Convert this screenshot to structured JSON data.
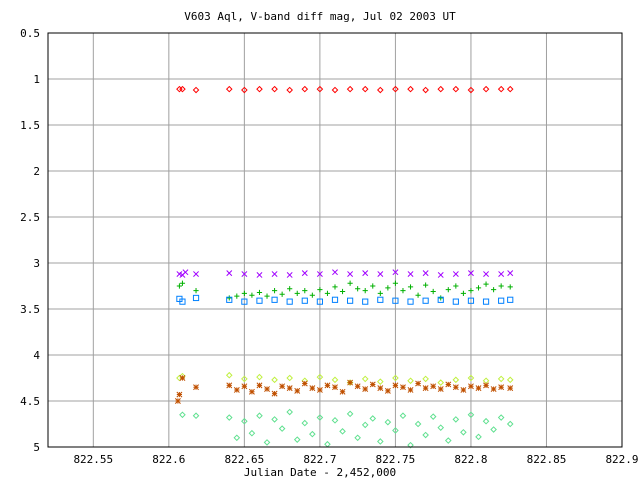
{
  "chart_data": {
    "type": "scatter",
    "title": "V603 Aql, V-band diff mag, Jul 02 2003 UT",
    "xlabel": "Julian Date - 2,452,000",
    "ylabel": "",
    "xlim": [
      822.52,
      822.9
    ],
    "ylim": [
      5,
      0.5
    ],
    "y_inverted": true,
    "grid": true,
    "legend": "none",
    "xticks": [
      "822.55",
      "822.6",
      "822.65",
      "822.7",
      "822.75",
      "822.8",
      "822.85",
      "822.9"
    ],
    "yticks": [
      "0.5",
      "1",
      "1.5",
      "2",
      "2.5",
      "3",
      "3.5",
      "4",
      "4.5",
      "5"
    ],
    "series": [
      {
        "color": "#ff0000",
        "marker": "diamond",
        "x": [
          822.607,
          822.609,
          822.618,
          822.64,
          822.65,
          822.66,
          822.67,
          822.68,
          822.69,
          822.7,
          822.71,
          822.72,
          822.73,
          822.74,
          822.75,
          822.76,
          822.77,
          822.78,
          822.79,
          822.8,
          822.81,
          822.82,
          822.826
        ],
        "y": [
          1.11,
          1.11,
          1.12,
          1.11,
          1.12,
          1.11,
          1.11,
          1.12,
          1.11,
          1.11,
          1.12,
          1.11,
          1.11,
          1.12,
          1.11,
          1.11,
          1.12,
          1.11,
          1.11,
          1.12,
          1.11,
          1.11,
          1.11
        ]
      },
      {
        "color": "#a000ff",
        "marker": "cross",
        "x": [
          822.607,
          822.609,
          822.611,
          822.618,
          822.64,
          822.65,
          822.66,
          822.67,
          822.68,
          822.69,
          822.7,
          822.71,
          822.72,
          822.73,
          822.74,
          822.75,
          822.76,
          822.77,
          822.78,
          822.79,
          822.8,
          822.81,
          822.82,
          822.826
        ],
        "y": [
          3.12,
          3.13,
          3.1,
          3.12,
          3.11,
          3.12,
          3.13,
          3.12,
          3.13,
          3.11,
          3.12,
          3.1,
          3.12,
          3.11,
          3.12,
          3.1,
          3.12,
          3.11,
          3.13,
          3.12,
          3.11,
          3.12,
          3.12,
          3.11
        ]
      },
      {
        "color": "#00b000",
        "marker": "plus",
        "x": [
          822.607,
          822.609,
          822.618,
          822.64,
          822.645,
          822.65,
          822.655,
          822.66,
          822.665,
          822.67,
          822.675,
          822.68,
          822.685,
          822.69,
          822.695,
          822.7,
          822.705,
          822.71,
          822.715,
          822.72,
          822.725,
          822.73,
          822.735,
          822.74,
          822.745,
          822.75,
          822.755,
          822.76,
          822.765,
          822.77,
          822.775,
          822.78,
          822.785,
          822.79,
          822.795,
          822.8,
          822.805,
          822.81,
          822.815,
          822.82,
          822.826
        ],
        "y": [
          3.25,
          3.22,
          3.3,
          3.38,
          3.36,
          3.33,
          3.35,
          3.32,
          3.36,
          3.3,
          3.34,
          3.28,
          3.33,
          3.3,
          3.35,
          3.29,
          3.33,
          3.26,
          3.31,
          3.22,
          3.28,
          3.3,
          3.25,
          3.33,
          3.27,
          3.22,
          3.3,
          3.26,
          3.35,
          3.24,
          3.31,
          3.38,
          3.29,
          3.25,
          3.33,
          3.3,
          3.27,
          3.23,
          3.29,
          3.25,
          3.26
        ]
      },
      {
        "color": "#0080ff",
        "marker": "square",
        "x": [
          822.607,
          822.609,
          822.618,
          822.64,
          822.65,
          822.66,
          822.67,
          822.68,
          822.69,
          822.7,
          822.71,
          822.72,
          822.73,
          822.74,
          822.75,
          822.76,
          822.77,
          822.78,
          822.79,
          822.8,
          822.81,
          822.82,
          822.826
        ],
        "y": [
          3.39,
          3.42,
          3.38,
          3.4,
          3.42,
          3.41,
          3.4,
          3.42,
          3.41,
          3.42,
          3.4,
          3.41,
          3.42,
          3.4,
          3.41,
          3.42,
          3.41,
          3.4,
          3.42,
          3.41,
          3.42,
          3.41,
          3.4
        ]
      },
      {
        "color": "#c0f040",
        "marker": "diamond",
        "x": [
          822.607,
          822.609,
          822.64,
          822.65,
          822.66,
          822.67,
          822.68,
          822.69,
          822.7,
          822.71,
          822.72,
          822.73,
          822.74,
          822.75,
          822.76,
          822.77,
          822.78,
          822.79,
          822.8,
          822.81,
          822.82,
          822.826
        ],
        "y": [
          4.25,
          4.23,
          4.22,
          4.26,
          4.24,
          4.27,
          4.25,
          4.28,
          4.24,
          4.27,
          4.3,
          4.26,
          4.29,
          4.25,
          4.28,
          4.26,
          4.3,
          4.27,
          4.25,
          4.28,
          4.26,
          4.27
        ]
      },
      {
        "color": "#c05000",
        "marker": "asterisk",
        "x": [
          822.606,
          822.607,
          822.609,
          822.618,
          822.64,
          822.645,
          822.65,
          822.655,
          822.66,
          822.665,
          822.67,
          822.675,
          822.68,
          822.685,
          822.69,
          822.695,
          822.7,
          822.705,
          822.71,
          822.715,
          822.72,
          822.725,
          822.73,
          822.735,
          822.74,
          822.745,
          822.75,
          822.755,
          822.76,
          822.765,
          822.77,
          822.775,
          822.78,
          822.785,
          822.79,
          822.795,
          822.8,
          822.805,
          822.81,
          822.815,
          822.82,
          822.826
        ],
        "y": [
          4.5,
          4.43,
          4.25,
          4.35,
          4.33,
          4.38,
          4.34,
          4.4,
          4.33,
          4.37,
          4.42,
          4.34,
          4.36,
          4.39,
          4.31,
          4.36,
          4.38,
          4.33,
          4.35,
          4.4,
          4.3,
          4.34,
          4.37,
          4.32,
          4.36,
          4.39,
          4.33,
          4.35,
          4.38,
          4.31,
          4.36,
          4.34,
          4.37,
          4.32,
          4.35,
          4.38,
          4.34,
          4.36,
          4.33,
          4.37,
          4.35,
          4.36
        ]
      },
      {
        "color": "#60e090",
        "marker": "diamond",
        "x": [
          822.609,
          822.618,
          822.64,
          822.645,
          822.65,
          822.655,
          822.66,
          822.665,
          822.67,
          822.675,
          822.68,
          822.685,
          822.69,
          822.695,
          822.7,
          822.705,
          822.71,
          822.715,
          822.72,
          822.725,
          822.73,
          822.735,
          822.74,
          822.745,
          822.75,
          822.755,
          822.76,
          822.765,
          822.77,
          822.775,
          822.78,
          822.785,
          822.79,
          822.795,
          822.8,
          822.805,
          822.81,
          822.815,
          822.82,
          822.826
        ],
        "y": [
          4.65,
          4.66,
          4.68,
          4.9,
          4.72,
          4.85,
          4.66,
          4.95,
          4.7,
          4.8,
          4.62,
          4.92,
          4.74,
          4.86,
          4.68,
          4.97,
          4.71,
          4.83,
          4.64,
          4.9,
          4.76,
          4.69,
          4.94,
          4.73,
          4.82,
          4.66,
          4.98,
          4.75,
          4.87,
          4.67,
          4.79,
          4.93,
          4.7,
          4.84,
          4.65,
          4.89,
          4.72,
          4.81,
          4.68,
          4.75
        ]
      }
    ]
  }
}
